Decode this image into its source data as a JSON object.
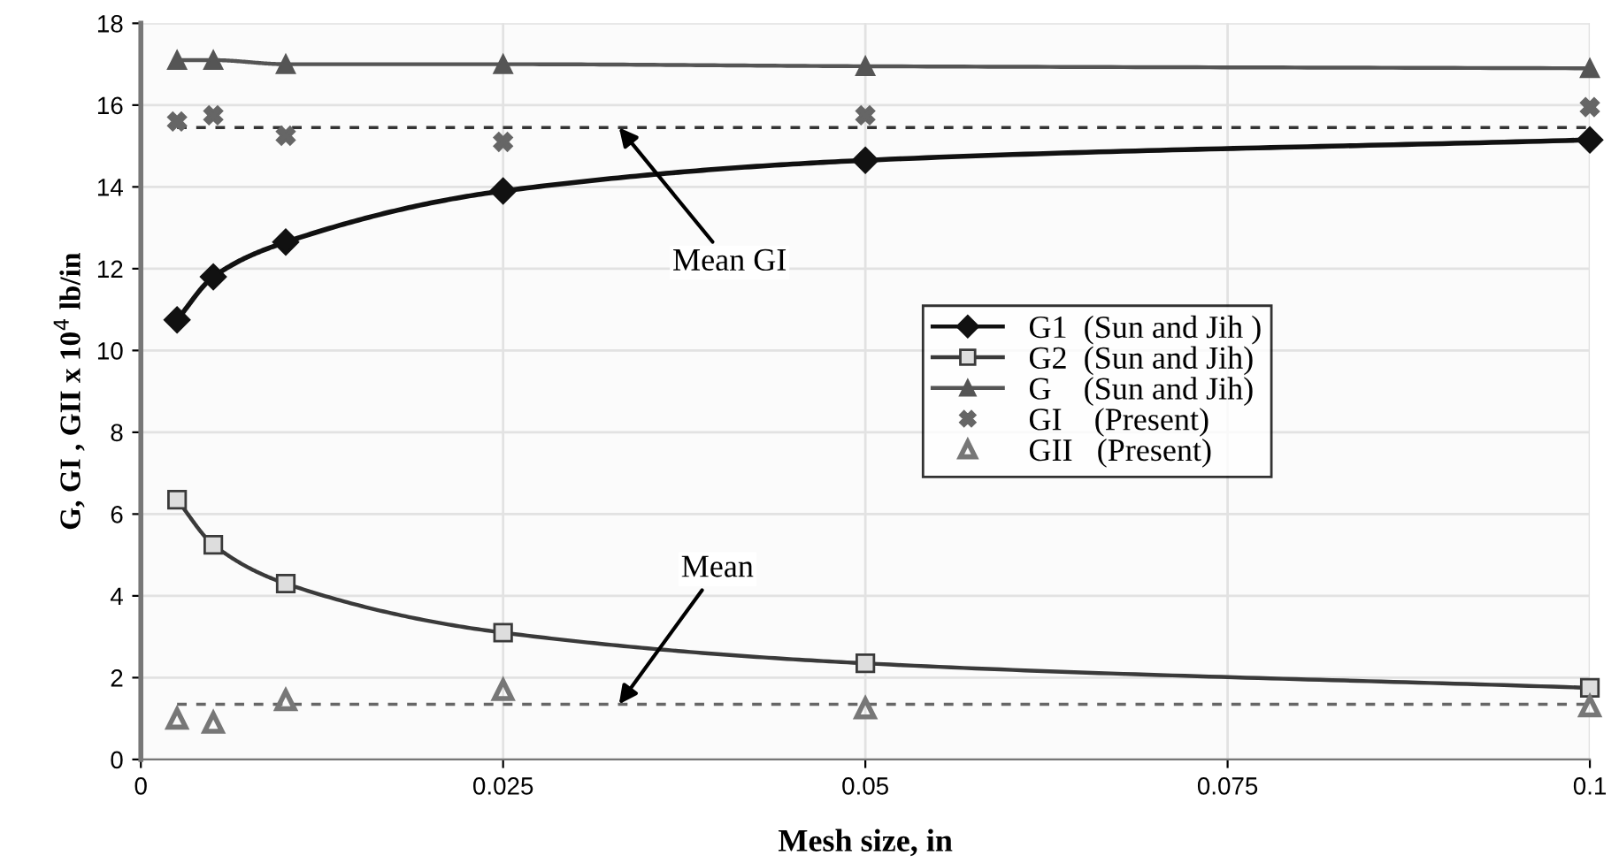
{
  "chart_data": {
    "type": "line",
    "xlabel": "Mesh size, in",
    "ylabel": "G, GI , GII x 10$^{4}$ lb/in",
    "x": [
      0.0025,
      0.005,
      0.01,
      0.025,
      0.05,
      0.1
    ],
    "xlim": [
      0,
      0.1
    ],
    "xticks": [
      0,
      {
        "value": 0.025,
        "label": "0.025"
      },
      {
        "value": 0.05,
        "label": "0.05"
      },
      {
        "value": 0.075,
        "label": "0.075"
      },
      {
        "value": 0.1,
        "label": "0.1"
      }
    ],
    "ylim": [
      0,
      18
    ],
    "yticks": [
      0,
      2,
      4,
      6,
      8,
      10,
      12,
      14,
      16,
      18
    ],
    "grid": true,
    "legend": "center",
    "series": [
      {
        "name": "G1  (Sun and Jih )",
        "color": "#111111",
        "marker": "diamond",
        "values": [
          10.75,
          11.8,
          12.65,
          13.9,
          14.65,
          15.15
        ]
      },
      {
        "name": "G2  (Sun and Jih)",
        "color": "#3a3a3a",
        "marker": "square",
        "values": [
          6.35,
          5.25,
          4.3,
          3.1,
          2.35,
          1.75
        ]
      },
      {
        "name": "G    (Sun and Jih)",
        "color": "#555555",
        "marker": "triangle",
        "values": [
          17.1,
          17.1,
          17.0,
          17.0,
          16.95,
          16.9
        ]
      },
      {
        "name": "GI    (Present)",
        "type": "scatter",
        "color": "#666666",
        "marker": "cross",
        "values": [
          15.6,
          15.75,
          15.25,
          15.1,
          15.75,
          15.95
        ]
      },
      {
        "name": "GII   (Present)",
        "type": "scatter",
        "color": "#777777",
        "marker": "triangle",
        "values": [
          1.0,
          0.9,
          1.45,
          1.7,
          1.25,
          1.3
        ]
      }
    ],
    "ref_lines": [
      {
        "axis": "y",
        "value": 15.45,
        "label": "Mean GI",
        "color": "#333333",
        "line_style": "dashed"
      },
      {
        "axis": "y",
        "value": 1.35,
        "label": "Mean",
        "color": "#666666",
        "line_style": "dashed"
      }
    ]
  }
}
